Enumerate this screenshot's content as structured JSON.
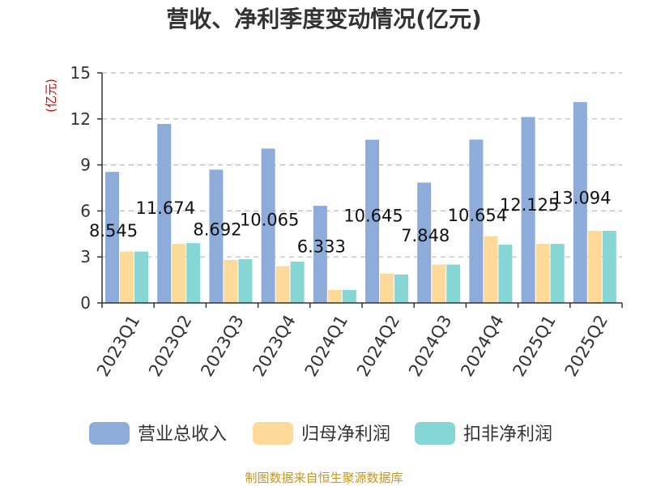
{
  "chart_data": {
    "type": "bar",
    "title": "营收、净利季度变动情况(亿元)",
    "unit_label": "(亿元)",
    "source": "制图数据来自恒生聚源数据库",
    "categories": [
      "2023Q1",
      "2023Q2",
      "2023Q3",
      "2023Q4",
      "2024Q1",
      "2024Q2",
      "2024Q3",
      "2024Q4",
      "2025Q1",
      "2025Q2"
    ],
    "ylim": [
      0,
      15
    ],
    "yticks": [
      0,
      3,
      6,
      9,
      12,
      15
    ],
    "grid": true,
    "legend_position": "bottom",
    "series": [
      {
        "name": "营业总收入",
        "color": "#8eacd9",
        "values": [
          8.545,
          11.674,
          8.692,
          10.065,
          6.333,
          10.645,
          7.848,
          10.654,
          12.125,
          13.094
        ]
      },
      {
        "name": "归母净利润",
        "color": "#fdd99a",
        "values": [
          3.35,
          3.85,
          2.8,
          2.4,
          0.85,
          1.9,
          2.5,
          4.35,
          3.85,
          4.7
        ]
      },
      {
        "name": "扣非净利润",
        "color": "#86d6d6",
        "values": [
          3.35,
          3.9,
          2.85,
          2.7,
          0.85,
          1.85,
          2.5,
          3.8,
          3.85,
          4.7
        ]
      }
    ],
    "data_labels": [
      "8.545",
      "11.674",
      "8.692",
      "10.065",
      "6.333",
      "10.645",
      "7.848",
      "10.654",
      "12.125",
      "13.094"
    ]
  }
}
